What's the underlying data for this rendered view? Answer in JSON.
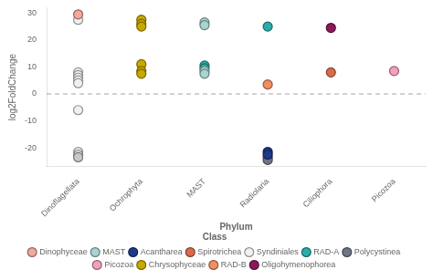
{
  "chart_data": {
    "type": "scatter",
    "categories": [
      "Dinoflagellata",
      "Ochrophyta",
      "MAST",
      "Radiolaria",
      "Ciliophora",
      "Picozoa"
    ],
    "series": [
      {
        "name": "Dinophyceae",
        "color": "#F4A79D",
        "x": [
          "Dinoflagellata"
        ],
        "values": [
          29.5
        ]
      },
      {
        "name": "MAST",
        "color": "#a8d4d0",
        "x": [
          "MAST",
          "MAST",
          "MAST",
          "MAST"
        ],
        "values": [
          26.5,
          25.5,
          8.5,
          7.5
        ]
      },
      {
        "name": "Acantharea",
        "color": "#1e3a8a",
        "x": [
          "Radiolaria",
          "Radiolaria"
        ],
        "values": [
          -21.5,
          -22.5
        ]
      },
      {
        "name": "Spirotrichea",
        "color": "#D96B4A",
        "x": [
          "Ciliophora"
        ],
        "values": [
          8.0
        ]
      },
      {
        "name": "Syndiniales",
        "color": "#f0f0f0",
        "x": [
          "Dinoflagellata",
          "Dinoflagellata",
          "Dinoflagellata",
          "Dinoflagellata",
          "Dinoflagellata",
          "Dinoflagellata",
          "Dinoflagellata"
        ],
        "values": [
          27.5,
          8.0,
          7.0,
          6.0,
          5.0,
          4.0,
          -6.0
        ]
      },
      {
        "name": "RAD-A",
        "color": "#2aada8",
        "x": [
          "MAST",
          "MAST",
          "Radiolaria"
        ],
        "values": [
          10.5,
          9.5,
          25.0
        ]
      },
      {
        "name": "Polycystinea",
        "color": "#707585",
        "x": [
          "Radiolaria",
          "Radiolaria"
        ],
        "values": [
          -23.5,
          -24.5
        ]
      },
      {
        "name": "Picozoa",
        "color": "#F4A0B8",
        "x": [
          "Picozoa"
        ],
        "values": [
          8.5
        ]
      },
      {
        "name": "Chrysophyceae",
        "color": "#c8a800",
        "x": [
          "Ochrophyta",
          "Ochrophyta",
          "Ochrophyta",
          "Ochrophyta",
          "Ochrophyta",
          "Ochrophyta"
        ],
        "values": [
          27.5,
          26.0,
          25.0,
          11.0,
          8.5,
          7.5
        ]
      },
      {
        "name": "RAD-B",
        "color": "#F09060",
        "x": [
          "Radiolaria"
        ],
        "values": [
          3.5
        ]
      },
      {
        "name": "Oligohymenophorea",
        "color": "#8B1A5A",
        "x": [
          "Ciliophora"
        ],
        "values": [
          24.5
        ]
      },
      {
        "colors": [
          "#f0f0f0",
          "#d8d8d8",
          "#c8c8c8"
        ],
        "x": [
          "Dinoflagellata",
          "Dinoflagellata",
          "Dinoflagellata"
        ],
        "values": [
          -21.5,
          -22.5,
          -23.5
        ]
      }
    ],
    "ylim": [
      -27,
      32
    ],
    "yticks": [
      -20,
      -10,
      0,
      10,
      20,
      30
    ],
    "ylabel": "log2FoldChange",
    "xlabel": "Phylum",
    "legend_title": "Class",
    "legend": "bottom",
    "hline": 0,
    "grid": false
  }
}
